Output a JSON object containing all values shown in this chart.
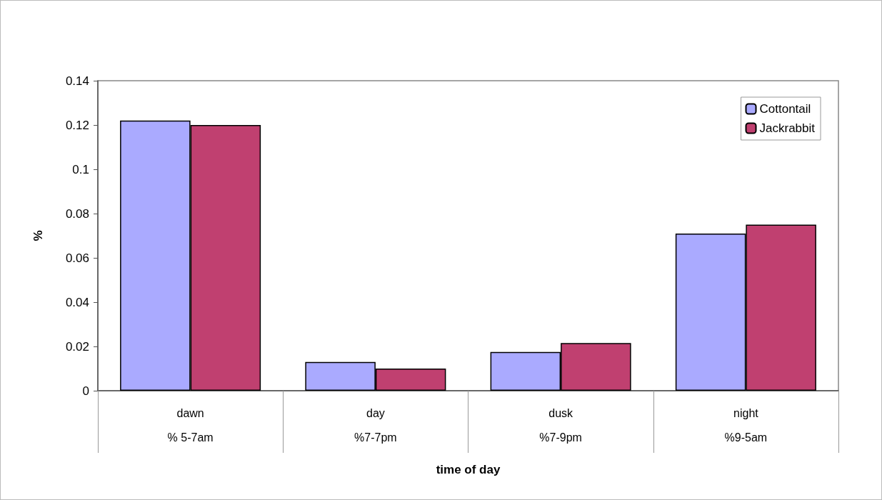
{
  "chart_data": {
    "type": "bar",
    "xlabel": "time of day",
    "ylabel": "%",
    "categories": [
      "dawn\n% 5-7am",
      "day\n%7-7pm",
      "dusk\n%7-9pm",
      "night\n%9-5am"
    ],
    "series": [
      {
        "name": "Cottontail",
        "color": "#aaaaff",
        "values": [
          0.122,
          0.013,
          0.0175,
          0.071
        ]
      },
      {
        "name": "Jackrabbit",
        "color": "#c04070",
        "values": [
          0.12,
          0.01,
          0.0215,
          0.075
        ]
      }
    ],
    "ylim": [
      0,
      0.14
    ],
    "yticks": [
      0,
      0.02,
      0.04,
      0.06,
      0.08,
      0.1,
      0.12,
      0.14
    ],
    "grid": false,
    "legend": "top right"
  }
}
